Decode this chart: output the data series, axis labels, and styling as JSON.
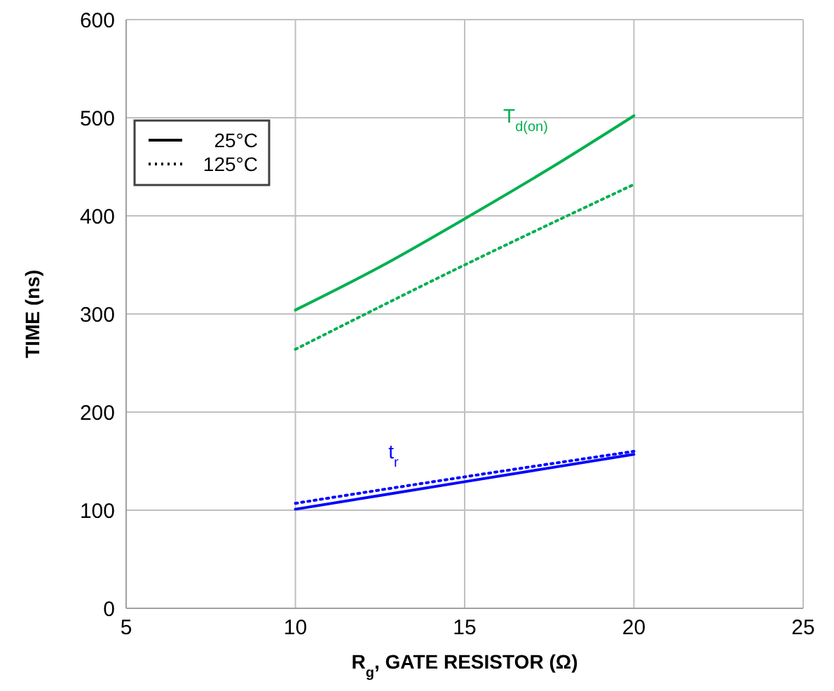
{
  "chart_data": {
    "type": "line",
    "xlabel": "R$_{g}$, GATE RESISTOR (Ω)",
    "ylabel": "TIME (ns)",
    "xlim": [
      5,
      25
    ],
    "xticks": [
      5,
      10,
      15,
      20,
      25
    ],
    "ylim": [
      0,
      600
    ],
    "yticks": [
      0,
      100,
      200,
      300,
      400,
      500,
      600
    ],
    "grid": true,
    "marker": "none",
    "series": [
      {
        "color": "#00b050",
        "line_style": "solid",
        "x": [
          10,
          12.5,
          15,
          17.5,
          20
        ],
        "values": [
          304,
          348,
          397,
          448,
          502
        ]
      },
      {
        "color": "#00b050",
        "line_style": "dotted",
        "x": [
          10,
          15,
          20
        ],
        "values": [
          264,
          350,
          432
        ]
      },
      {
        "color": "#0000ff",
        "line_style": "solid",
        "x": [
          10,
          15,
          20
        ],
        "values": [
          101,
          129,
          157
        ]
      },
      {
        "color": "#0000ff",
        "line_style": "dotted",
        "x": [
          10,
          15,
          20
        ],
        "values": [
          107,
          134,
          160
        ]
      }
    ],
    "annotations": [
      "25°C",
      "125°C",
      "T$_{d(on)}$",
      "t$_{r}$"
    ]
  }
}
